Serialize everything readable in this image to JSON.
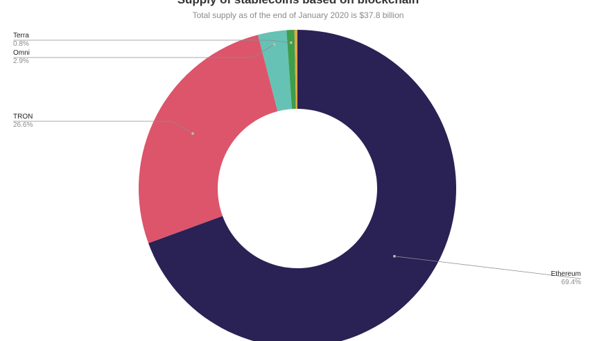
{
  "chart_data": {
    "type": "pie",
    "title": "Supply of stablecoins based on blockchain",
    "subtitle": "Total supply as of the end of January 2020 is $37.8 billion",
    "slices": [
      {
        "name": "Ethereum",
        "value": 69.4,
        "label": "69.4%",
        "color": "#2a2155",
        "label_side": "right"
      },
      {
        "name": "TRON",
        "value": 26.6,
        "label": "26.6%",
        "color": "#dc556b",
        "label_side": "left"
      },
      {
        "name": "Omni",
        "value": 2.9,
        "label": "2.9%",
        "color": "#66c2b5",
        "label_side": "left"
      },
      {
        "name": "Terra",
        "value": 0.8,
        "label": "0.8%",
        "color": "#3e9e4a",
        "label_side": "left"
      },
      {
        "name": "",
        "value": 0.3,
        "label": "",
        "color": "#e0a848",
        "label_side": "none"
      }
    ],
    "donut": true,
    "legend": "none"
  }
}
